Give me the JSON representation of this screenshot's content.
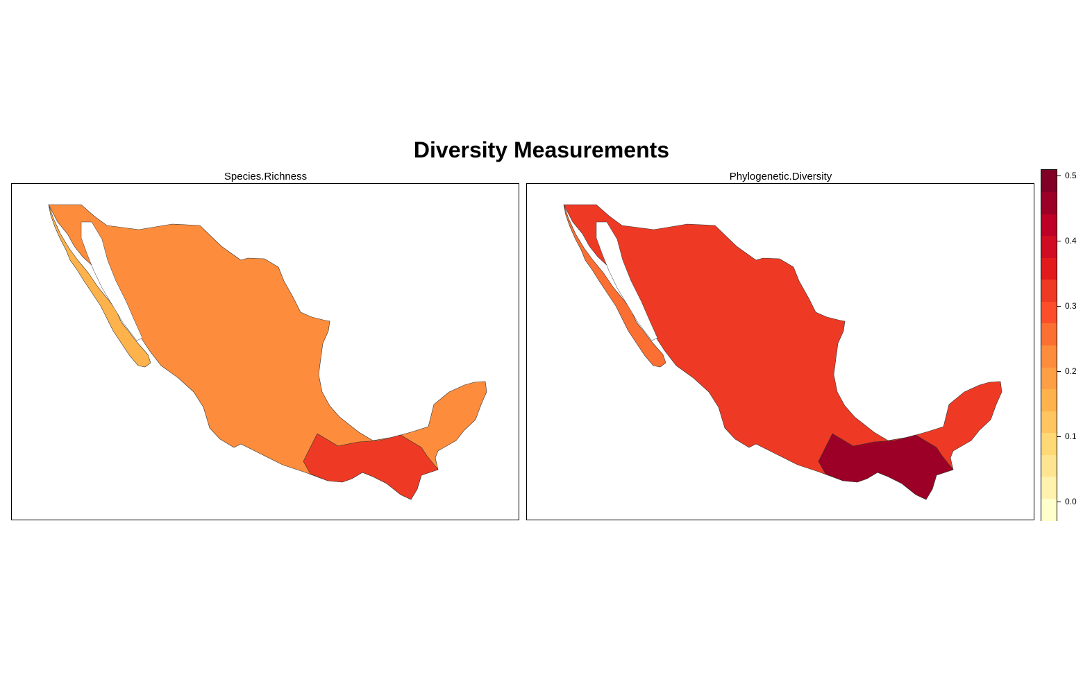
{
  "title": "Diversity Measurements",
  "panels": [
    {
      "name": "Species.Richness",
      "fill_level": 0.21,
      "south_level": 0.32
    },
    {
      "name": "Phylogenetic.Diversity",
      "fill_level": 0.33,
      "south_level": 0.47
    }
  ],
  "legend": {
    "range": [
      -0.03,
      0.51
    ],
    "ticks": [
      {
        "value": 0.0,
        "label": "0.0"
      },
      {
        "value": 0.1,
        "label": "0.1"
      },
      {
        "value": 0.2,
        "label": "0.2"
      },
      {
        "value": 0.3,
        "label": "0.3"
      },
      {
        "value": 0.4,
        "label": "0.4"
      },
      {
        "value": 0.5,
        "label": "0.5"
      }
    ],
    "colors": [
      "#ffffcc",
      "#fff2ae",
      "#ffe591",
      "#fed976",
      "#fec560",
      "#feb24c",
      "#fd9f44",
      "#fd8d3c",
      "#fc6f33",
      "#fc4e2a",
      "#ee3a24",
      "#e31a1c",
      "#cf0c21",
      "#bd0026",
      "#9d0026",
      "#800026"
    ]
  }
}
